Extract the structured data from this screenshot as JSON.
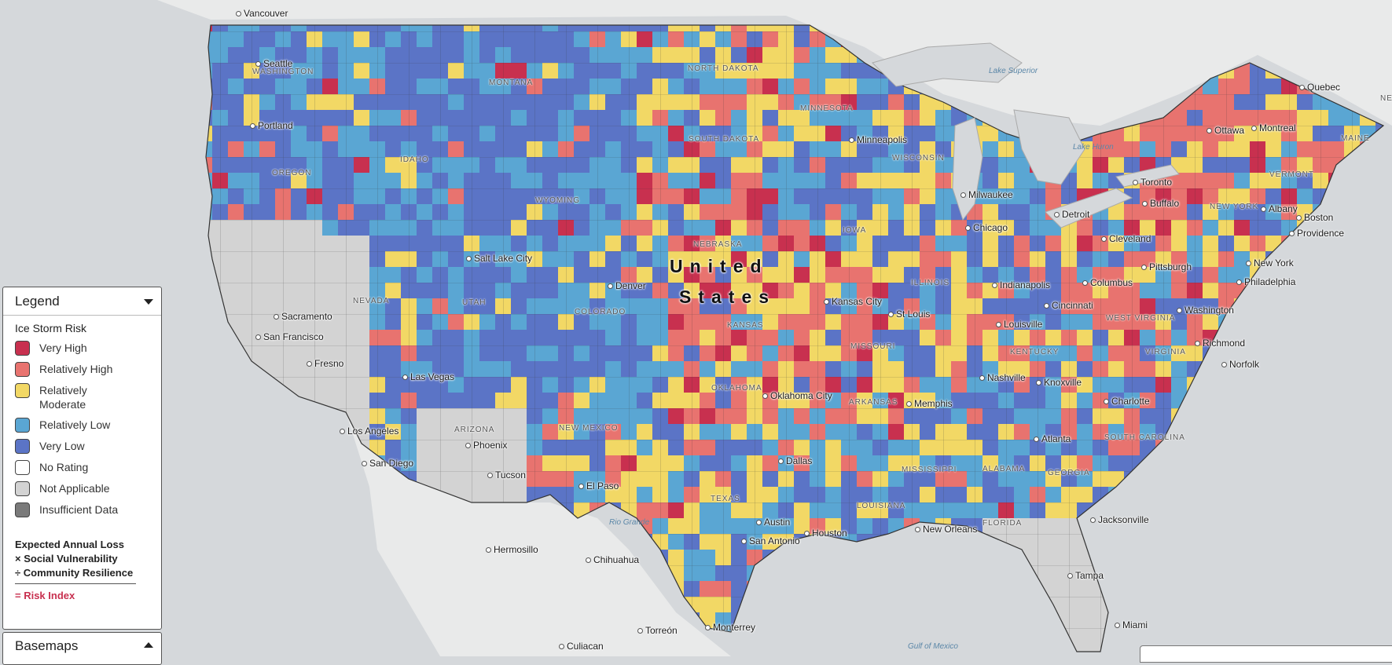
{
  "map": {
    "country_label": "United States",
    "colors": {
      "very_high": "#c8304f",
      "relatively_high": "#e8736f",
      "relatively_moderate": "#f2d865",
      "relatively_low": "#5aa6d3",
      "very_low": "#5b74c6",
      "no_rating": "#ffffff",
      "not_applicable": "#d3d3d3",
      "insufficient_data": "#7a7a7a",
      "land_outside": "#e9eaea",
      "water": "#d5d8db"
    },
    "cities": [
      {
        "id": "vancouver",
        "name": "Vancouver"
      },
      {
        "id": "seattle",
        "name": "Seattle"
      },
      {
        "id": "portland",
        "name": "Portland"
      },
      {
        "id": "sacramento",
        "name": "Sacramento"
      },
      {
        "id": "san-francisco",
        "name": "San Francisco"
      },
      {
        "id": "fresno",
        "name": "Fresno"
      },
      {
        "id": "las-vegas",
        "name": "Las Vegas"
      },
      {
        "id": "los-angeles",
        "name": "Los Angeles"
      },
      {
        "id": "san-diego",
        "name": "San Diego"
      },
      {
        "id": "phoenix",
        "name": "Phoenix"
      },
      {
        "id": "tucson",
        "name": "Tucson"
      },
      {
        "id": "salt-lake-city",
        "name": "Salt Lake City"
      },
      {
        "id": "denver",
        "name": "Denver"
      },
      {
        "id": "el-paso",
        "name": "El Paso"
      },
      {
        "id": "hermosillo",
        "name": "Hermosillo"
      },
      {
        "id": "chihuahua",
        "name": "Chihuahua"
      },
      {
        "id": "culiacan",
        "name": "Culiacan"
      },
      {
        "id": "torreon",
        "name": "Torreón"
      },
      {
        "id": "monterrey",
        "name": "Monterrey"
      },
      {
        "id": "austin",
        "name": "Austin"
      },
      {
        "id": "san-antonio",
        "name": "San Antonio"
      },
      {
        "id": "houston",
        "name": "Houston"
      },
      {
        "id": "dallas",
        "name": "Dallas"
      },
      {
        "id": "oklahoma-city",
        "name": "Oklahoma City"
      },
      {
        "id": "kansas-city",
        "name": "Kansas City"
      },
      {
        "id": "st-louis",
        "name": "St Louis"
      },
      {
        "id": "memphis",
        "name": "Memphis"
      },
      {
        "id": "new-orleans",
        "name": "New Orleans"
      },
      {
        "id": "nashville",
        "name": "Nashville"
      },
      {
        "id": "louisville",
        "name": "Louisville"
      },
      {
        "id": "indianapolis",
        "name": "Indianapolis"
      },
      {
        "id": "chicago",
        "name": "Chicago"
      },
      {
        "id": "milwaukee",
        "name": "Milwaukee"
      },
      {
        "id": "minneapolis",
        "name": "Minneapolis"
      },
      {
        "id": "detroit",
        "name": "Detroit"
      },
      {
        "id": "cleveland",
        "name": "Cleveland"
      },
      {
        "id": "columbus",
        "name": "Columbus"
      },
      {
        "id": "cincinnati",
        "name": "Cincinnati"
      },
      {
        "id": "pittsburgh",
        "name": "Pittsburgh"
      },
      {
        "id": "knoxville",
        "name": "Knoxville"
      },
      {
        "id": "charlotte",
        "name": "Charlotte"
      },
      {
        "id": "atlanta",
        "name": "Atlanta"
      },
      {
        "id": "jacksonville",
        "name": "Jacksonville"
      },
      {
        "id": "tampa",
        "name": "Tampa"
      },
      {
        "id": "miami",
        "name": "Miami"
      },
      {
        "id": "richmond",
        "name": "Richmond"
      },
      {
        "id": "norfolk",
        "name": "Norfolk"
      },
      {
        "id": "washington",
        "name": "Washington"
      },
      {
        "id": "philadelphia",
        "name": "Philadelphia"
      },
      {
        "id": "new-york",
        "name": "New York"
      },
      {
        "id": "providence",
        "name": "Providence"
      },
      {
        "id": "boston",
        "name": "Boston"
      },
      {
        "id": "albany",
        "name": "Albany"
      },
      {
        "id": "buffalo",
        "name": "Buffalo"
      },
      {
        "id": "toronto",
        "name": "Toronto"
      },
      {
        "id": "ottawa",
        "name": "Ottawa"
      },
      {
        "id": "montreal",
        "name": "Montreal"
      },
      {
        "id": "quebec",
        "name": "Quebec"
      }
    ],
    "states": [
      {
        "id": "washington-state",
        "name": "WASHINGTON"
      },
      {
        "id": "oregon",
        "name": "OREGON"
      },
      {
        "id": "idaho",
        "name": "IDAHO"
      },
      {
        "id": "montana",
        "name": "MONTANA"
      },
      {
        "id": "wyoming",
        "name": "WYOMING"
      },
      {
        "id": "nevada",
        "name": "NEVADA"
      },
      {
        "id": "utah",
        "name": "UTAH"
      },
      {
        "id": "colorado",
        "name": "COLORADO"
      },
      {
        "id": "arizona",
        "name": "ARIZONA"
      },
      {
        "id": "new-mexico",
        "name": "NEW MEXICO"
      },
      {
        "id": "north-dakota",
        "name": "NORTH DAKOTA"
      },
      {
        "id": "south-dakota",
        "name": "SOUTH DAKOTA"
      },
      {
        "id": "nebraska",
        "name": "NEBRASKA"
      },
      {
        "id": "kansas",
        "name": "KANSAS"
      },
      {
        "id": "oklahoma",
        "name": "OKLAHOMA"
      },
      {
        "id": "texas",
        "name": "TEXAS"
      },
      {
        "id": "minnesota",
        "name": "MINNESOTA"
      },
      {
        "id": "iowa",
        "name": "IOWA"
      },
      {
        "id": "missouri",
        "name": "MISSOURI"
      },
      {
        "id": "arkansas",
        "name": "ARKANSAS"
      },
      {
        "id": "louisiana",
        "name": "LOUISIANA"
      },
      {
        "id": "wisconsin",
        "name": "WISCONSIN"
      },
      {
        "id": "illinois",
        "name": "ILLINOIS"
      },
      {
        "id": "mississippi",
        "name": "MISSISSIPPI"
      },
      {
        "id": "alabama",
        "name": "ALABAMA"
      },
      {
        "id": "georgia",
        "name": "GEORGIA"
      },
      {
        "id": "florida",
        "name": "FLORIDA"
      },
      {
        "id": "kentucky",
        "name": "KENTUCKY"
      },
      {
        "id": "west-virginia",
        "name": "WEST VIRGINIA"
      },
      {
        "id": "virginia",
        "name": "VIRGINIA"
      },
      {
        "id": "south-carolina",
        "name": "SOUTH CAROLINA"
      },
      {
        "id": "new-york-state",
        "name": "NEW YORK"
      },
      {
        "id": "vermont",
        "name": "VERMONT"
      },
      {
        "id": "maine",
        "name": "MAINE"
      },
      {
        "id": "new-brunswick",
        "name": "NEW BRU"
      }
    ],
    "water": [
      {
        "id": "lake-superior",
        "name": "Lake Superior"
      },
      {
        "id": "lake-huron",
        "name": "Lake Huron"
      },
      {
        "id": "gulf-of-mexico",
        "name": "Gulf of Mexico"
      },
      {
        "id": "rio-grande",
        "name": "Rio Grande"
      }
    ]
  },
  "legend": {
    "header": "Legend",
    "title": "Ice Storm Risk",
    "items": [
      {
        "key": "very_high",
        "label": "Very High"
      },
      {
        "key": "relatively_high",
        "label": "Relatively High"
      },
      {
        "key": "relatively_moderate",
        "label": "Relatively Moderate"
      },
      {
        "key": "relatively_low",
        "label": "Relatively Low"
      },
      {
        "key": "very_low",
        "label": "Very Low"
      },
      {
        "key": "no_rating",
        "label": "No Rating"
      },
      {
        "key": "not_applicable",
        "label": "Not Applicable"
      },
      {
        "key": "insufficient_data",
        "label": "Insufficient Data"
      }
    ],
    "formula": {
      "line1": "Expected Annual Loss",
      "line2": "× Social Vulnerability",
      "line3": "÷ Community Resilience",
      "result": "= Risk Index"
    }
  },
  "basemaps": {
    "header": "Basemaps"
  }
}
